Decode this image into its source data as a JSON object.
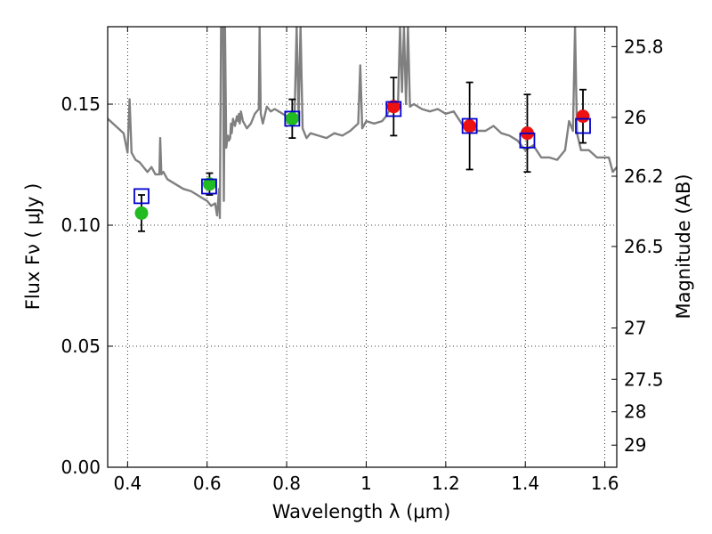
{
  "chart_data": {
    "type": "scatter",
    "title": "",
    "xlabel": "Wavelength  λ (μm)",
    "ylabel": "Flux  Fν  ( μJy )",
    "y2label": "Magnitude (AB)",
    "xlim": [
      0.35,
      1.63
    ],
    "ylim": [
      0.0,
      0.182
    ],
    "grid": true,
    "grid_style": "dotted",
    "x_ticks": [
      0.4,
      0.6,
      0.8,
      1.0,
      1.2,
      1.4,
      1.6
    ],
    "x_tick_labels": [
      "0.4",
      "0.6",
      "0.8",
      "1",
      "1.2",
      "1.4",
      "1.6"
    ],
    "y_ticks": [
      0.0,
      0.05,
      0.1,
      0.15
    ],
    "y_tick_labels": [
      "0.00",
      "0.05",
      "0.10",
      "0.15"
    ],
    "y2_ticks": [
      25.8,
      26,
      26.2,
      26.5,
      27,
      27.5,
      28,
      29
    ],
    "y2_tick_labels": [
      "25.8",
      "26",
      "26.2",
      "26.5",
      "27",
      "27.5",
      "28",
      "29"
    ],
    "colors": {
      "model": "#808080",
      "model_photometry": "#0000cc",
      "optical_points": "#22bb22",
      "nir_points": "#ee1111",
      "errorbars": "#000000"
    },
    "model_spectrum": {
      "color": "#808080",
      "x": [
        0.35,
        0.37,
        0.39,
        0.4,
        0.405,
        0.41,
        0.42,
        0.43,
        0.44,
        0.45,
        0.46,
        0.47,
        0.48,
        0.482,
        0.485,
        0.49,
        0.5,
        0.52,
        0.54,
        0.56,
        0.58,
        0.6,
        0.61,
        0.62,
        0.625,
        0.63,
        0.632,
        0.635,
        0.64,
        0.642,
        0.645,
        0.648,
        0.652,
        0.655,
        0.658,
        0.66,
        0.662,
        0.665,
        0.67,
        0.675,
        0.678,
        0.68,
        0.682,
        0.685,
        0.69,
        0.7,
        0.71,
        0.72,
        0.73,
        0.732,
        0.735,
        0.74,
        0.75,
        0.76,
        0.77,
        0.78,
        0.79,
        0.8,
        0.81,
        0.82,
        0.825,
        0.83,
        0.835,
        0.84,
        0.845,
        0.85,
        0.86,
        0.88,
        0.9,
        0.92,
        0.94,
        0.96,
        0.98,
        0.985,
        0.99,
        1.0,
        1.02,
        1.04,
        1.05,
        1.06,
        1.07,
        1.08,
        1.085,
        1.09,
        1.095,
        1.1,
        1.105,
        1.11,
        1.12,
        1.14,
        1.16,
        1.18,
        1.2,
        1.22,
        1.24,
        1.26,
        1.28,
        1.3,
        1.32,
        1.34,
        1.36,
        1.38,
        1.4,
        1.42,
        1.44,
        1.46,
        1.48,
        1.5,
        1.51,
        1.52,
        1.525,
        1.53,
        1.54,
        1.56,
        1.58,
        1.6,
        1.61,
        1.62,
        1.63
      ],
      "y": [
        0.144,
        0.141,
        0.138,
        0.13,
        0.152,
        0.13,
        0.127,
        0.126,
        0.124,
        0.122,
        0.124,
        0.121,
        0.121,
        0.136,
        0.121,
        0.122,
        0.119,
        0.117,
        0.115,
        0.114,
        0.112,
        0.11,
        0.108,
        0.109,
        0.104,
        0.115,
        0.103,
        0.182,
        0.182,
        0.11,
        0.182,
        0.132,
        0.137,
        0.135,
        0.136,
        0.142,
        0.138,
        0.144,
        0.141,
        0.145,
        0.143,
        0.146,
        0.142,
        0.147,
        0.143,
        0.14,
        0.142,
        0.146,
        0.148,
        0.182,
        0.146,
        0.142,
        0.149,
        0.147,
        0.148,
        0.147,
        0.146,
        0.145,
        0.142,
        0.145,
        0.182,
        0.145,
        0.182,
        0.14,
        0.138,
        0.136,
        0.138,
        0.137,
        0.136,
        0.138,
        0.137,
        0.139,
        0.142,
        0.166,
        0.14,
        0.143,
        0.142,
        0.143,
        0.145,
        0.148,
        0.148,
        0.15,
        0.182,
        0.155,
        0.182,
        0.15,
        0.182,
        0.149,
        0.15,
        0.148,
        0.147,
        0.148,
        0.146,
        0.147,
        0.142,
        0.14,
        0.139,
        0.139,
        0.141,
        0.138,
        0.137,
        0.135,
        0.131,
        0.133,
        0.128,
        0.128,
        0.127,
        0.131,
        0.143,
        0.139,
        0.182,
        0.138,
        0.131,
        0.131,
        0.128,
        0.128,
        0.128,
        0.122,
        0.124
      ]
    },
    "model_photometry": {
      "color": "#0000cc",
      "marker": "open-square",
      "x": [
        0.435,
        0.605,
        0.814,
        1.069,
        1.26,
        1.405,
        1.545
      ],
      "y": [
        0.112,
        0.116,
        0.144,
        0.148,
        0.141,
        0.135,
        0.141
      ]
    },
    "series": [
      {
        "color": "#22bb22",
        "marker": "filled-circle",
        "x": [
          0.435,
          0.606,
          0.814
        ],
        "y": [
          0.105,
          0.117,
          0.144
        ],
        "yerr": [
          0.0075,
          0.0045,
          0.008
        ]
      },
      {
        "color": "#ee1111",
        "marker": "filled-circle",
        "x": [
          1.069,
          1.26,
          1.405,
          1.545
        ],
        "y": [
          0.149,
          0.141,
          0.138,
          0.145
        ],
        "yerr": [
          0.012,
          0.018,
          0.016,
          0.011
        ]
      }
    ]
  }
}
